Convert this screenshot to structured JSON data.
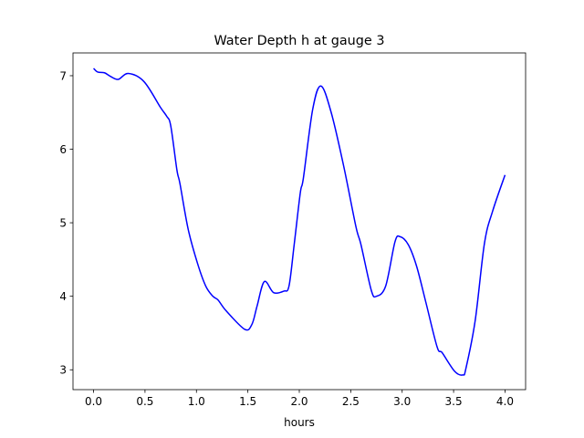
{
  "chart_data": {
    "type": "line",
    "title": "Water Depth h at gauge 3",
    "xlabel": "hours",
    "ylabel": "",
    "xlim": [
      -0.2,
      4.2
    ],
    "ylim": [
      2.73,
      7.31
    ],
    "xticks": [
      0.0,
      0.5,
      1.0,
      1.5,
      2.0,
      2.5,
      3.0,
      3.5,
      4.0
    ],
    "xtick_labels": [
      "0.0",
      "0.5",
      "1.0",
      "1.5",
      "2.0",
      "2.5",
      "3.0",
      "3.5",
      "4.0"
    ],
    "yticks": [
      3,
      4,
      5,
      6,
      7
    ],
    "ytick_labels": [
      "3",
      "4",
      "5",
      "6",
      "7"
    ],
    "grid": false,
    "series": [
      {
        "name": "h",
        "color": "#0000ff",
        "x": [
          0.0,
          0.04,
          0.106,
          0.166,
          0.24,
          0.337,
          0.49,
          0.65,
          0.71,
          0.75,
          0.81,
          0.84,
          0.92,
          1.01,
          1.09,
          1.16,
          1.21,
          1.29,
          1.47,
          1.54,
          1.59,
          1.66,
          1.75,
          1.85,
          1.9,
          1.95,
          2.01,
          2.04,
          2.13,
          2.21,
          2.31,
          2.43,
          2.55,
          2.6,
          2.7,
          2.75,
          2.84,
          2.93,
          2.98,
          3.06,
          3.14,
          3.23,
          3.34,
          3.39,
          3.51,
          3.59,
          3.62,
          3.71,
          3.8,
          3.88,
          4.0
        ],
        "y": [
          7.1,
          7.05,
          7.04,
          6.99,
          6.95,
          7.03,
          6.92,
          6.57,
          6.45,
          6.32,
          5.72,
          5.53,
          4.91,
          4.45,
          4.14,
          4.0,
          3.95,
          3.8,
          3.55,
          3.62,
          3.87,
          4.2,
          4.05,
          4.07,
          4.14,
          4.7,
          5.41,
          5.61,
          6.54,
          6.86,
          6.5,
          5.78,
          4.95,
          4.7,
          4.08,
          4.0,
          4.14,
          4.74,
          4.81,
          4.7,
          4.41,
          3.92,
          3.31,
          3.23,
          2.98,
          2.93,
          3.02,
          3.67,
          4.72,
          5.16,
          5.65
        ]
      }
    ]
  }
}
